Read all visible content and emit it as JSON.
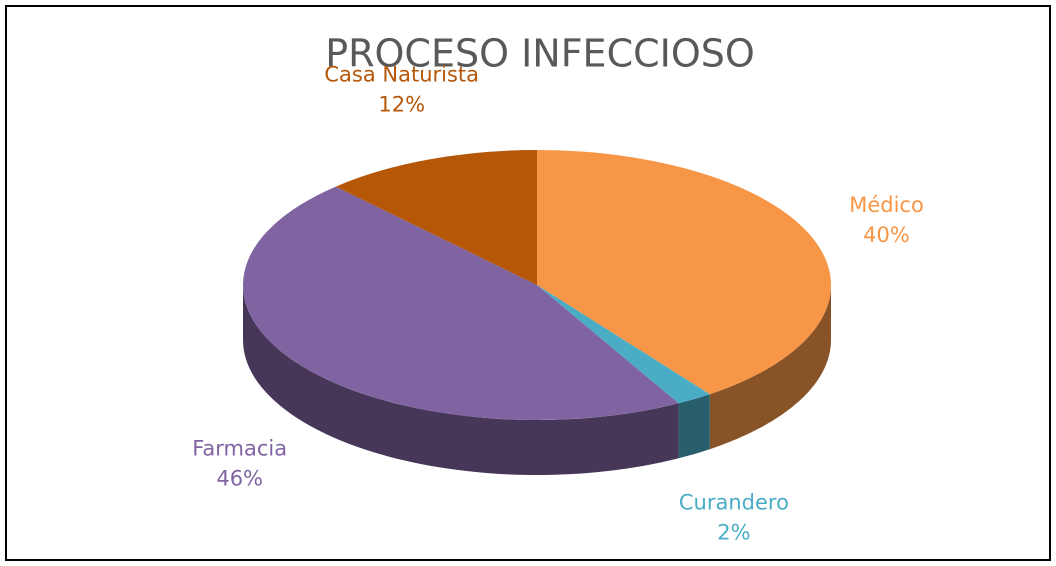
{
  "chart_data": {
    "type": "pie",
    "title": "PROCESO INFECCIOSO",
    "categories": [
      "Médico",
      "Curandero",
      "Farmacia",
      "Casa Naturista"
    ],
    "values": [
      40,
      2,
      46,
      12
    ],
    "value_labels": [
      "40%",
      "2%",
      "46%",
      "12%"
    ],
    "colors": [
      "#f79646",
      "#4bacc6",
      "#8064a2",
      "#b65708"
    ]
  }
}
